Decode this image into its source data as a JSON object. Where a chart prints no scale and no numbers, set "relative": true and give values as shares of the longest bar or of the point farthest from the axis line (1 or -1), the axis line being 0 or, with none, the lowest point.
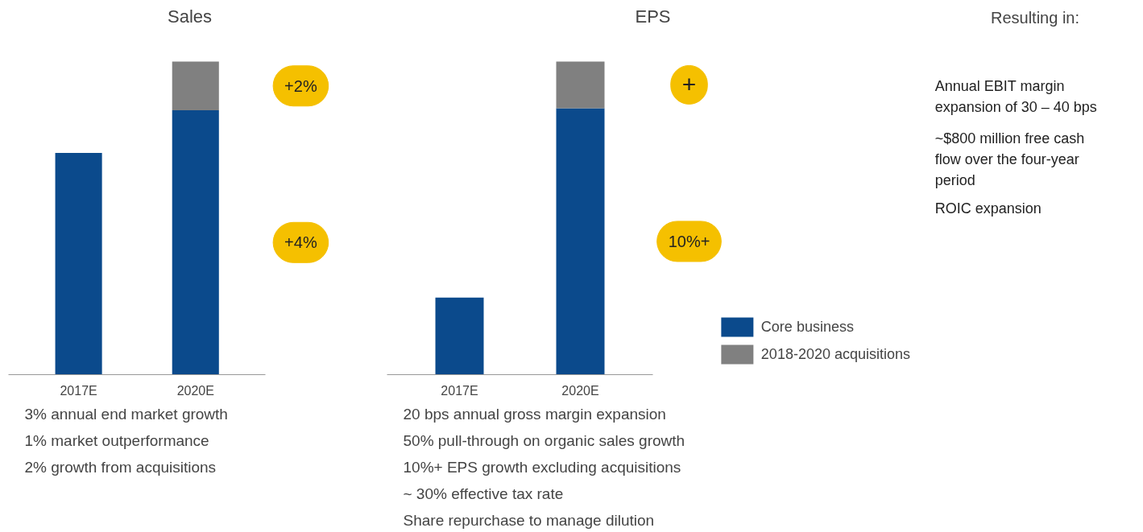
{
  "chart_data": [
    {
      "type": "bar",
      "title": "Sales",
      "categories": [
        "2017E",
        "2020E"
      ],
      "relative": true,
      "stacked": true,
      "grid": false,
      "legend": false,
      "series": [
        {
          "color": "#0b4a8c",
          "values": [
            0.708,
            0.844
          ]
        },
        {
          "color": "#808080",
          "values": [
            0,
            0.156
          ]
        }
      ],
      "annotations": [
        "+2%",
        "+4%",
        "3% annual end market growth",
        "1% market outperformance",
        "2% growth from acquisitions"
      ]
    },
    {
      "type": "bar",
      "title": "EPS",
      "categories": [
        "2017E",
        "2020E"
      ],
      "relative": true,
      "stacked": true,
      "grid": false,
      "legend": "bottom right",
      "series": [
        {
          "name": "Core business",
          "color": "#0b4a8c",
          "values": [
            0.246,
            0.851
          ]
        },
        {
          "name": "2018-2020 acquisitions",
          "color": "#808080",
          "values": [
            0,
            0.149
          ]
        }
      ],
      "annotations": [
        "+",
        "10%+",
        "20 bps annual gross margin expansion",
        "50% pull-through on organic sales growth",
        "10%+ EPS growth excluding acquisitions",
        "~ 30% effective tax rate",
        "Share repurchase to manage dilution"
      ]
    },
    {
      "type": "other",
      "title": "Resulting in:",
      "annotations": [
        "Annual EBIT margin expansion of 30 – 40 bps",
        "~$800 million free cash flow over the four-year period",
        "ROIC expansion"
      ]
    }
  ]
}
